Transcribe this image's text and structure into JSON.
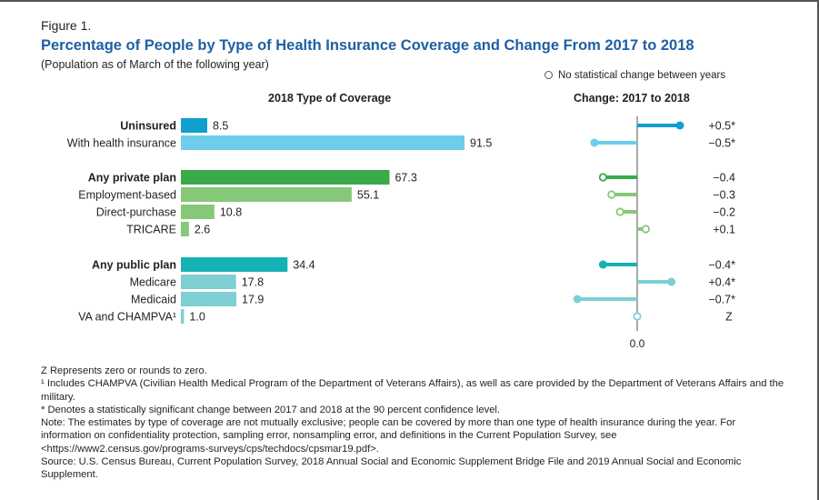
{
  "figure_label": "Figure 1.",
  "title": "Percentage of People by Type of Health Insurance Coverage and Change From 2017 to 2018",
  "subtitle": "(Population as of March of the following year)",
  "legend": "No statistical change between years",
  "chart_data": {
    "type": "bar",
    "left_header": "2018 Type of Coverage",
    "right_header": "Change: 2017 to 2018",
    "change_axis_label": "0.0",
    "rows": [
      {
        "label": "Uninsured",
        "bold": true,
        "value": 8.5,
        "value_label": "8.5",
        "change": 0.5,
        "change_label": "+0.5*",
        "significant": true,
        "color": "#119fce"
      },
      {
        "label": "With health insurance",
        "bold": false,
        "value": 91.5,
        "value_label": "91.5",
        "change": -0.5,
        "change_label": "−0.5*",
        "significant": true,
        "color": "#6dcdea"
      },
      {
        "label": "Any private plan",
        "bold": true,
        "value": 67.3,
        "value_label": "67.3",
        "change": -0.4,
        "change_label": "−0.4",
        "significant": false,
        "color": "#3aaa4a"
      },
      {
        "label": "Employment-based",
        "bold": false,
        "value": 55.1,
        "value_label": "55.1",
        "change": -0.3,
        "change_label": "−0.3",
        "significant": false,
        "color": "#86c877"
      },
      {
        "label": "Direct-purchase",
        "bold": false,
        "value": 10.8,
        "value_label": "10.8",
        "change": -0.2,
        "change_label": "−0.2",
        "significant": false,
        "color": "#86c877"
      },
      {
        "label": "TRICARE",
        "bold": false,
        "value": 2.6,
        "value_label": "2.6",
        "change": 0.1,
        "change_label": "+0.1",
        "significant": false,
        "color": "#86c877"
      },
      {
        "label": "Any public plan",
        "bold": true,
        "value": 34.4,
        "value_label": "34.4",
        "change": -0.4,
        "change_label": "−0.4*",
        "significant": true,
        "color": "#16b1b5"
      },
      {
        "label": "Medicare",
        "bold": false,
        "value": 17.8,
        "value_label": "17.8",
        "change": 0.4,
        "change_label": "+0.4*",
        "significant": true,
        "color": "#7dcfd3"
      },
      {
        "label": "Medicaid",
        "bold": false,
        "value": 17.9,
        "value_label": "17.9",
        "change": -0.7,
        "change_label": "−0.7*",
        "significant": true,
        "color": "#7dcfd3"
      },
      {
        "label": "VA and CHAMPVA¹",
        "bold": false,
        "value": 1.0,
        "value_label": "1.0",
        "change": 0,
        "change_label": "Z",
        "significant": false,
        "color": "#7dcfd3"
      }
    ]
  },
  "notes": [
    "Z Represents zero or rounds to zero.",
    "¹ Includes CHAMPVA (Civilian Health Medical Program of the Department of Veterans Affairs), as well as care provided by the Department of Veterans Affairs and the military.",
    "* Denotes a statistically significant change between 2017 and 2018 at the 90 percent confidence level.",
    "Note: The estimates by type of coverage are not mutually exclusive; people can be covered by more than one type of health insurance during the year. For information on confidentiality protection, sampling error, nonsampling error, and definitions in the Current Population Survey, see <https://www2.census.gov/programs-surveys/cps/techdocs/cpsmar19.pdf>.",
    "Source: U.S. Census Bureau, Current Population Survey, 2018 Annual Social and Economic Supplement Bridge File and 2019 Annual Social and Economic Supplement."
  ]
}
